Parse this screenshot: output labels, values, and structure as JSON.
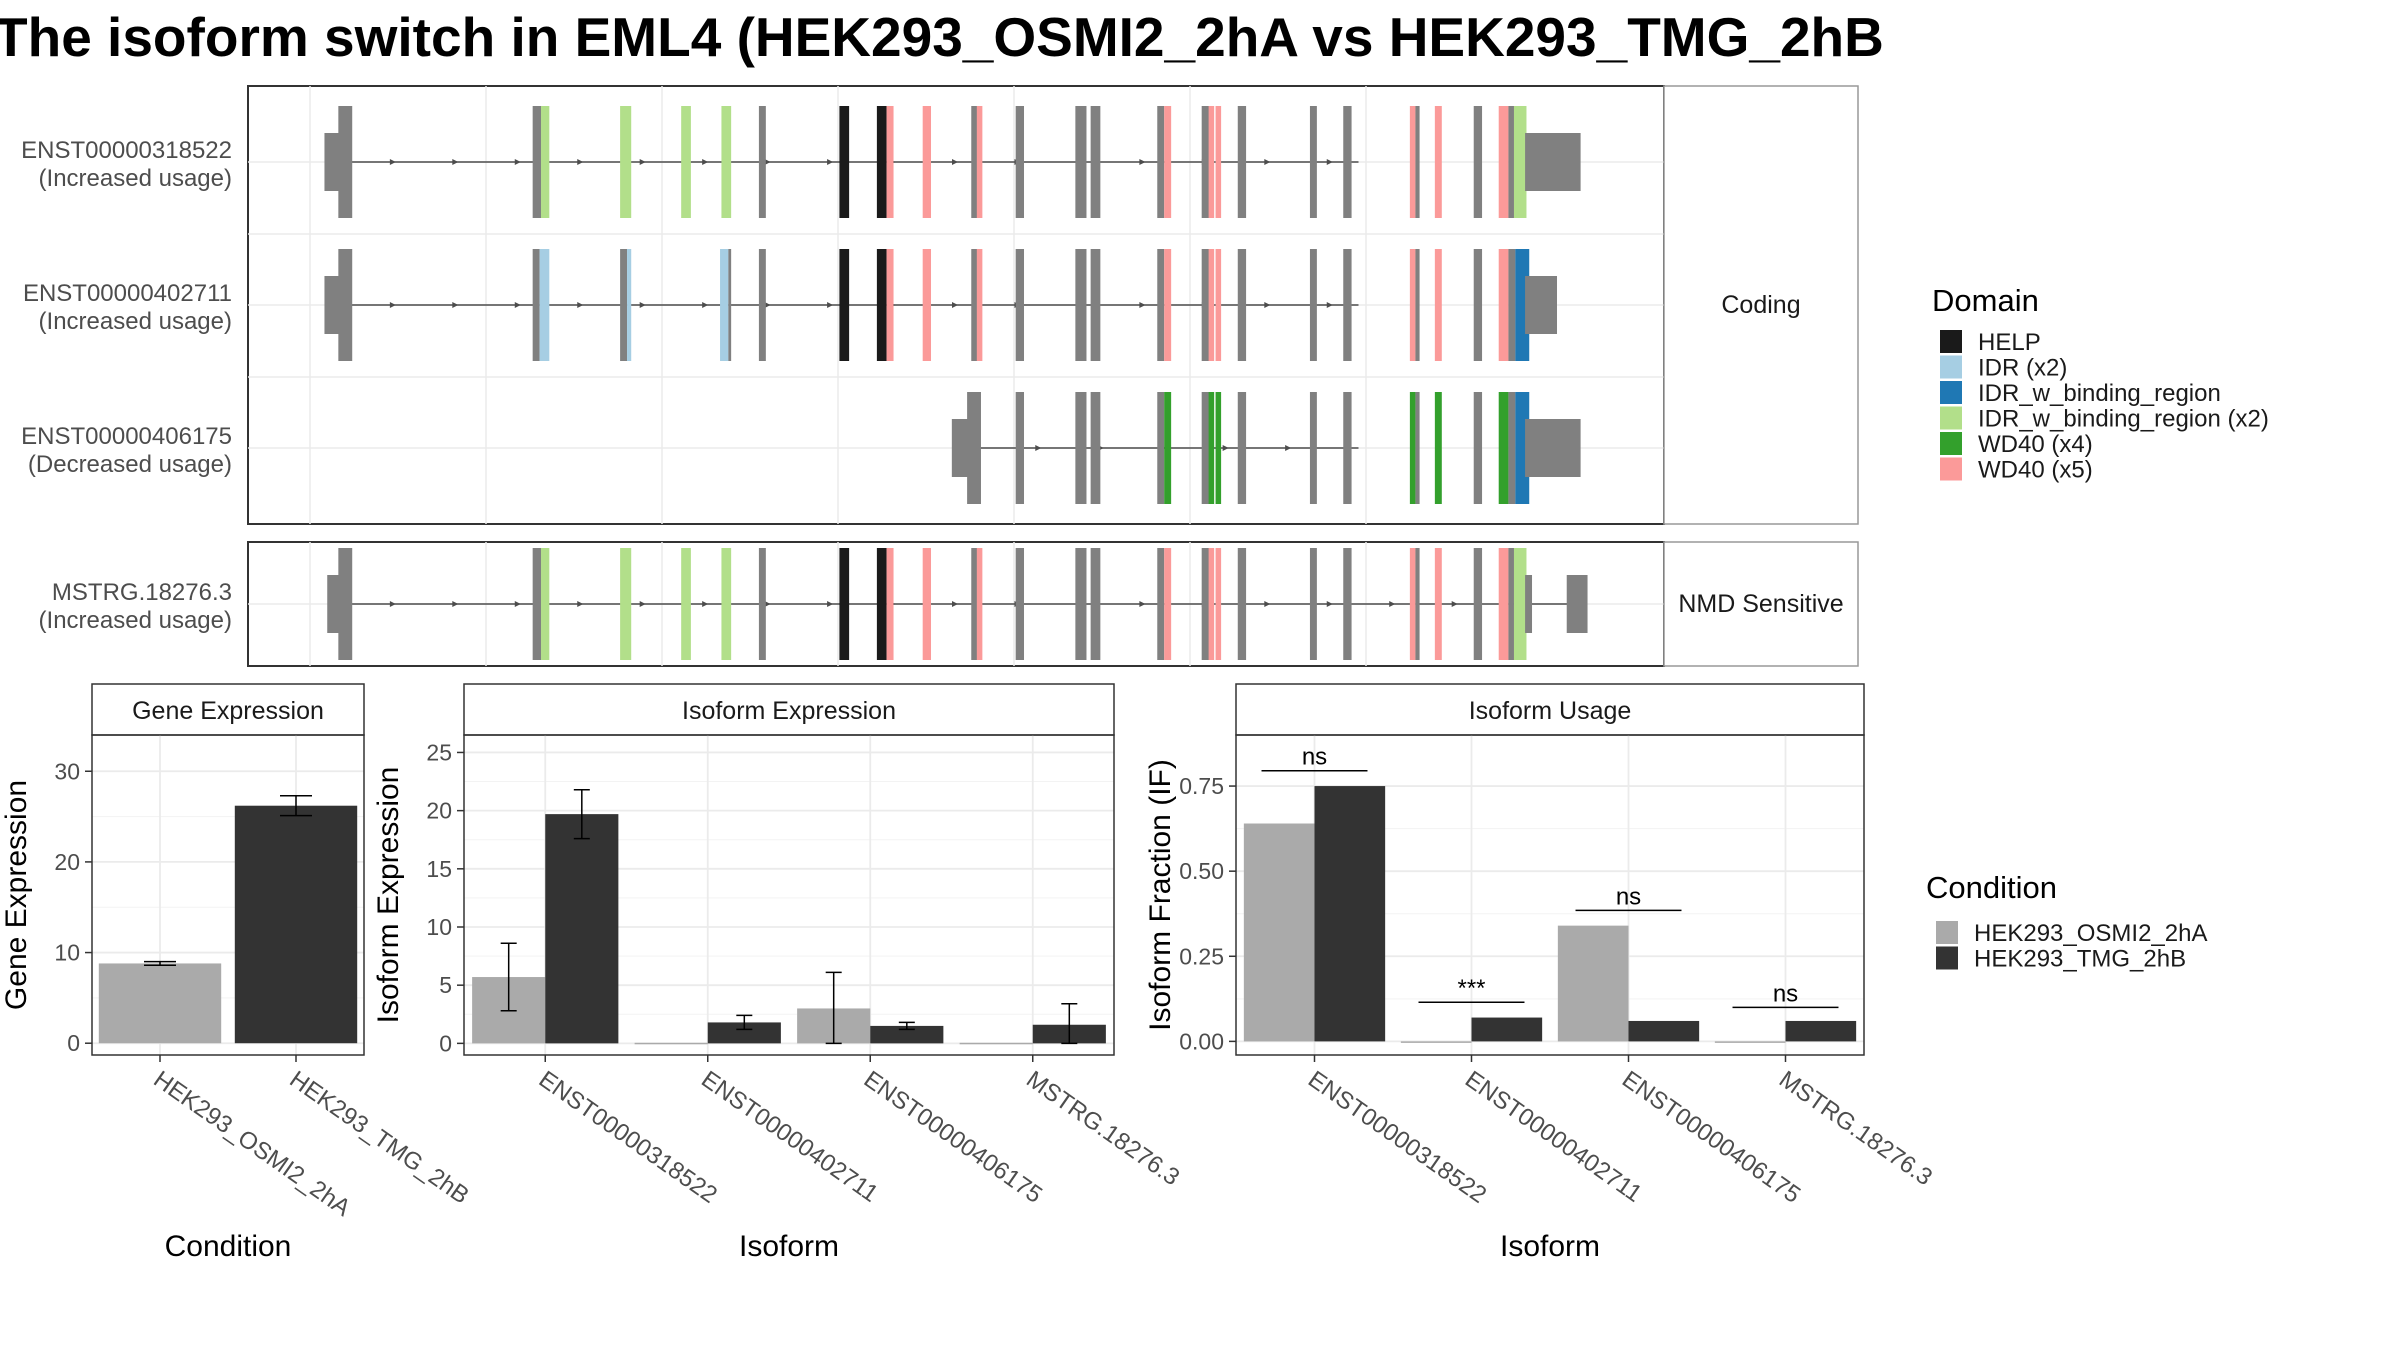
{
  "title": "The isoform switch in EML4 (HEK293_OSMI2_2hA vs HEK293_TMG_2hB",
  "colors": {
    "intron": "#4d4d4d",
    "exon": "#808080",
    "panel_border": "#333333",
    "strip_border": "#999999",
    "grid": "#ebebeb",
    "condA": "#aaaaaa",
    "condB": "#333333"
  },
  "structure": {
    "coding_label": "Coding",
    "nmd_label": "NMD Sensitive",
    "x_range": [
      0,
      100
    ],
    "transcripts": [
      {
        "id": "ENST00000318522",
        "usage": "(Increased usage)",
        "panel": "coding",
        "intron": [
          5,
          79
        ],
        "exons": [
          [
            4.5,
            5.7,
            "u"
          ],
          [
            5.5,
            6.5,
            "c"
          ],
          [
            19.5,
            20.2,
            "c"
          ],
          [
            20.1,
            20.7,
            "IDR_w_binding_region (x2)"
          ],
          [
            25.8,
            26.6,
            "IDR_w_binding_region (x2)"
          ],
          [
            30.2,
            30.9,
            "IDR_w_binding_region (x2)"
          ],
          [
            33.1,
            33.8,
            "IDR_w_binding_region (x2)"
          ],
          [
            35.8,
            36.3,
            "c"
          ],
          [
            41.6,
            42.3,
            "HELP"
          ],
          [
            44.3,
            45.0,
            "HELP"
          ],
          [
            45.0,
            45.5,
            "WD40 (x5)"
          ],
          [
            47.6,
            48.2,
            "WD40 (x5)"
          ],
          [
            51.1,
            51.7,
            "c"
          ],
          [
            51.5,
            51.9,
            "WD40 (x5)"
          ],
          [
            54.3,
            54.9,
            "c"
          ],
          [
            58.6,
            59.4,
            "c"
          ],
          [
            59.7,
            60.4,
            "c"
          ],
          [
            64.5,
            65.0,
            "c"
          ],
          [
            65.0,
            65.5,
            "WD40 (x5)"
          ],
          [
            67.7,
            68.3,
            "c"
          ],
          [
            68.2,
            68.6,
            "WD40 (x5)"
          ],
          [
            68.7,
            69.1,
            "WD40 (x5)"
          ],
          [
            70.3,
            70.9,
            "c"
          ],
          [
            75.5,
            76.0,
            "c"
          ],
          [
            77.9,
            78.5,
            "c"
          ],
          [
            82.7,
            83.1,
            "WD40 (x5)"
          ],
          [
            83.1,
            83.4,
            "c"
          ],
          [
            84.5,
            85.0,
            "WD40 (x5)"
          ],
          [
            87.3,
            87.9,
            "c"
          ],
          [
            89.1,
            89.8,
            "WD40 (x5)"
          ],
          [
            89.8,
            90.2,
            "c"
          ],
          [
            90.2,
            91.1,
            "IDR_w_binding_region (x2)"
          ],
          [
            91.0,
            95.0,
            "u"
          ]
        ]
      },
      {
        "id": "ENST00000402711",
        "usage": "(Increased usage)",
        "panel": "coding",
        "intron": [
          5,
          79
        ],
        "exons": [
          [
            4.5,
            5.7,
            "u"
          ],
          [
            5.5,
            6.5,
            "c"
          ],
          [
            19.5,
            20.0,
            "c"
          ],
          [
            20.0,
            20.7,
            "IDR (x2)"
          ],
          [
            25.8,
            26.3,
            "c"
          ],
          [
            26.3,
            26.6,
            "IDR (x2)"
          ],
          [
            33.0,
            33.6,
            "IDR (x2)"
          ],
          [
            33.6,
            33.8,
            "c"
          ],
          [
            35.8,
            36.3,
            "c"
          ],
          [
            41.6,
            42.3,
            "HELP"
          ],
          [
            44.3,
            45.0,
            "HELP"
          ],
          [
            45.0,
            45.5,
            "WD40 (x5)"
          ],
          [
            47.6,
            48.2,
            "WD40 (x5)"
          ],
          [
            51.1,
            51.7,
            "c"
          ],
          [
            51.5,
            51.9,
            "WD40 (x5)"
          ],
          [
            54.3,
            54.9,
            "c"
          ],
          [
            58.6,
            59.4,
            "c"
          ],
          [
            59.7,
            60.4,
            "c"
          ],
          [
            64.5,
            65.0,
            "c"
          ],
          [
            65.0,
            65.5,
            "WD40 (x5)"
          ],
          [
            67.7,
            68.3,
            "c"
          ],
          [
            68.2,
            68.6,
            "WD40 (x5)"
          ],
          [
            68.7,
            69.1,
            "WD40 (x5)"
          ],
          [
            70.3,
            70.9,
            "c"
          ],
          [
            75.5,
            76.0,
            "c"
          ],
          [
            77.9,
            78.5,
            "c"
          ],
          [
            82.7,
            83.1,
            "WD40 (x5)"
          ],
          [
            83.1,
            83.4,
            "c"
          ],
          [
            84.5,
            85.0,
            "WD40 (x5)"
          ],
          [
            87.3,
            87.9,
            "c"
          ],
          [
            89.1,
            89.8,
            "WD40 (x5)"
          ],
          [
            89.8,
            90.3,
            "c"
          ],
          [
            90.3,
            91.3,
            "IDR_w_binding_region"
          ],
          [
            91.0,
            93.3,
            "u"
          ]
        ]
      },
      {
        "id": "ENST00000406175",
        "usage": "(Decreased usage)",
        "panel": "coding",
        "intron": [
          51.5,
          79
        ],
        "exons": [
          [
            49.7,
            50.9,
            "u"
          ],
          [
            50.8,
            51.8,
            "c"
          ],
          [
            54.3,
            54.9,
            "c"
          ],
          [
            58.6,
            59.4,
            "c"
          ],
          [
            59.7,
            60.4,
            "c"
          ],
          [
            64.5,
            65.0,
            "c"
          ],
          [
            65.0,
            65.5,
            "WD40 (x4)"
          ],
          [
            67.7,
            68.3,
            "c"
          ],
          [
            68.2,
            68.6,
            "WD40 (x4)"
          ],
          [
            68.7,
            69.1,
            "WD40 (x4)"
          ],
          [
            70.3,
            70.9,
            "c"
          ],
          [
            75.5,
            76.0,
            "c"
          ],
          [
            77.9,
            78.5,
            "c"
          ],
          [
            82.7,
            83.1,
            "WD40 (x4)"
          ],
          [
            83.1,
            83.4,
            "c"
          ],
          [
            84.5,
            85.0,
            "WD40 (x4)"
          ],
          [
            87.3,
            87.9,
            "c"
          ],
          [
            89.1,
            89.8,
            "WD40 (x4)"
          ],
          [
            89.8,
            90.3,
            "c"
          ],
          [
            90.3,
            91.3,
            "IDR_w_binding_region"
          ],
          [
            91.0,
            95.0,
            "u"
          ]
        ]
      },
      {
        "id": "MSTRG.18276.3",
        "usage": "(Increased usage)",
        "panel": "nmd",
        "intron": [
          5,
          95
        ],
        "exons": [
          [
            4.7,
            5.7,
            "u"
          ],
          [
            5.5,
            6.5,
            "c"
          ],
          [
            19.5,
            20.2,
            "c"
          ],
          [
            20.1,
            20.7,
            "IDR_w_binding_region (x2)"
          ],
          [
            25.8,
            26.6,
            "IDR_w_binding_region (x2)"
          ],
          [
            30.2,
            30.9,
            "IDR_w_binding_region (x2)"
          ],
          [
            33.1,
            33.8,
            "IDR_w_binding_region (x2)"
          ],
          [
            35.8,
            36.3,
            "c"
          ],
          [
            41.6,
            42.3,
            "HELP"
          ],
          [
            44.3,
            45.0,
            "HELP"
          ],
          [
            45.0,
            45.5,
            "WD40 (x5)"
          ],
          [
            47.6,
            48.2,
            "WD40 (x5)"
          ],
          [
            51.1,
            51.7,
            "c"
          ],
          [
            51.5,
            51.9,
            "WD40 (x5)"
          ],
          [
            54.3,
            54.9,
            "c"
          ],
          [
            58.6,
            59.4,
            "c"
          ],
          [
            59.7,
            60.4,
            "c"
          ],
          [
            64.5,
            65.0,
            "c"
          ],
          [
            65.0,
            65.5,
            "WD40 (x5)"
          ],
          [
            67.7,
            68.3,
            "c"
          ],
          [
            68.2,
            68.6,
            "WD40 (x5)"
          ],
          [
            68.7,
            69.1,
            "WD40 (x5)"
          ],
          [
            70.3,
            70.9,
            "c"
          ],
          [
            75.5,
            76.0,
            "c"
          ],
          [
            77.9,
            78.5,
            "c"
          ],
          [
            82.7,
            83.1,
            "WD40 (x5)"
          ],
          [
            83.1,
            83.4,
            "c"
          ],
          [
            84.5,
            85.0,
            "WD40 (x5)"
          ],
          [
            87.3,
            87.9,
            "c"
          ],
          [
            89.1,
            89.8,
            "WD40 (x5)"
          ],
          [
            89.8,
            90.2,
            "c"
          ],
          [
            90.2,
            91.1,
            "IDR_w_binding_region (x2)"
          ],
          [
            91.0,
            91.5,
            "u"
          ],
          [
            94.0,
            95.5,
            "u"
          ]
        ]
      }
    ]
  },
  "domain_legend": {
    "title": "Domain",
    "entries": [
      {
        "name": "HELP",
        "color": "#1a1a1a"
      },
      {
        "name": "IDR (x2)",
        "color": "#a6cee3"
      },
      {
        "name": "IDR_w_binding_region",
        "color": "#1f78b4"
      },
      {
        "name": "IDR_w_binding_region (x2)",
        "color": "#b2df8a"
      },
      {
        "name": "WD40 (x4)",
        "color": "#33a02c"
      },
      {
        "name": "WD40 (x5)",
        "color": "#fb9a99"
      }
    ]
  },
  "condition_legend": {
    "title": "Condition",
    "entries": [
      {
        "name": "HEK293_OSMI2_2hA",
        "color": "#aaaaaa"
      },
      {
        "name": "HEK293_TMG_2hB",
        "color": "#333333"
      }
    ]
  },
  "chart_data": [
    {
      "type": "bar",
      "title": "Gene Expression",
      "xlabel": "Condition",
      "ylabel": "Gene Expression",
      "ylim": [
        -1.3,
        34
      ],
      "yticks": [
        0,
        10,
        20,
        30
      ],
      "categories": [
        "HEK293_OSMI2_2hA",
        "HEK293_TMG_2hB"
      ],
      "values": [
        8.8,
        26.2
      ],
      "errors": [
        [
          8.6,
          9.0
        ],
        [
          25.1,
          27.3
        ]
      ]
    },
    {
      "type": "bar",
      "title": "Isoform Expression",
      "xlabel": "Isoform",
      "ylabel": "Isoform Expression",
      "ylim": [
        -1.0,
        26.5
      ],
      "yticks": [
        0,
        5,
        10,
        15,
        20,
        25
      ],
      "categories": [
        "ENST00000318522",
        "ENST00000402711",
        "ENST00000406175",
        "MSTRG.18276.3"
      ],
      "series": [
        {
          "name": "HEK293_OSMI2_2hA",
          "values": [
            5.7,
            0.05,
            3.0,
            0.05
          ],
          "errors": [
            [
              2.8,
              8.6
            ],
            null,
            [
              0.0,
              6.1
            ],
            null
          ]
        },
        {
          "name": "HEK293_TMG_2hB",
          "values": [
            19.7,
            1.8,
            1.5,
            1.6
          ],
          "errors": [
            [
              17.6,
              21.8
            ],
            [
              1.2,
              2.4
            ],
            [
              1.2,
              1.8
            ],
            [
              0.0,
              3.4
            ]
          ]
        }
      ]
    },
    {
      "type": "bar",
      "title": "Isoform Usage",
      "xlabel": "Isoform",
      "ylabel": "Isoform Fraction (IF)",
      "ylim": [
        -0.04,
        0.9
      ],
      "yticks": [
        "0.00",
        "0.25",
        "0.50",
        "0.75"
      ],
      "categories": [
        "ENST00000318522",
        "ENST00000402711",
        "ENST00000406175",
        "MSTRG.18276.3"
      ],
      "series": [
        {
          "name": "HEK293_OSMI2_2hA",
          "values": [
            0.64,
            0.0,
            0.34,
            0.0
          ]
        },
        {
          "name": "HEK293_TMG_2hB",
          "values": [
            0.75,
            0.07,
            0.06,
            0.06
          ]
        }
      ],
      "significance": [
        {
          "label": "ns",
          "y": 0.795
        },
        {
          "label": "***",
          "y": 0.115
        },
        {
          "label": "ns",
          "y": 0.385
        },
        {
          "label": "ns",
          "y": 0.1
        }
      ]
    }
  ]
}
